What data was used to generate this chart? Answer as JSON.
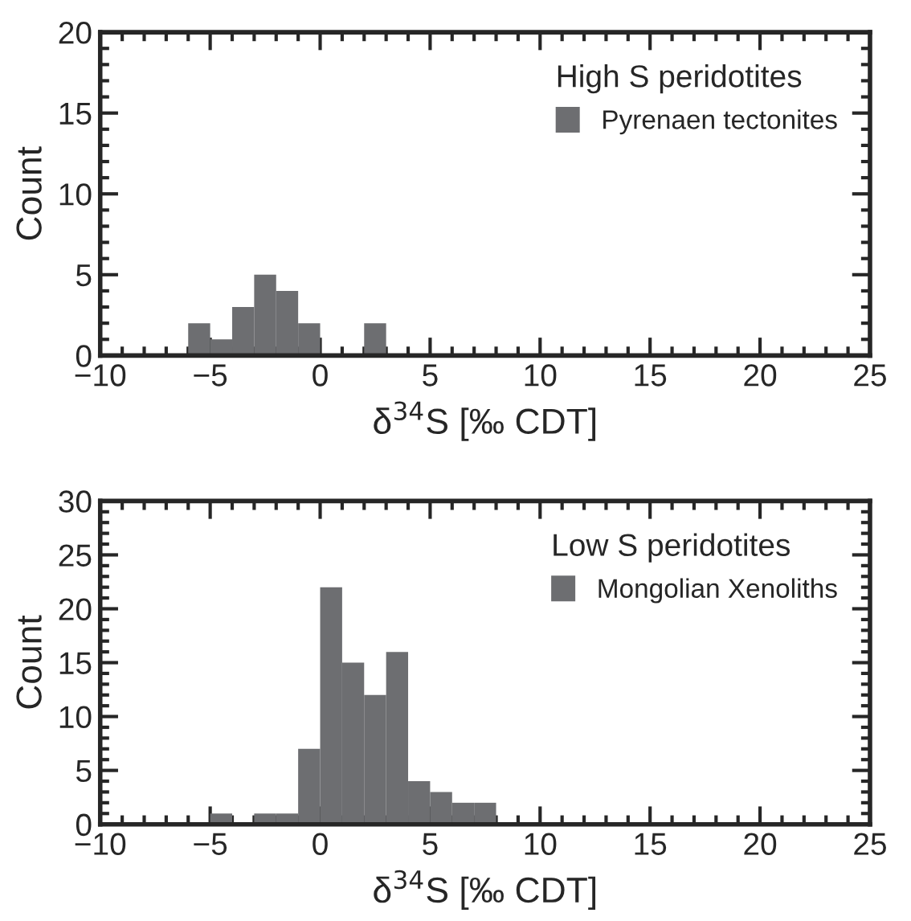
{
  "chart_data": [
    {
      "type": "histogram",
      "xlabel": "δ$^{34}$S [‰ CDT]",
      "ylabel": "Count",
      "legend_title": "High S peridotites",
      "legend": "top right",
      "bins": [
        -6,
        -5,
        -4,
        -3,
        -2,
        -1,
        0,
        1,
        2,
        3
      ],
      "series": [
        {
          "name": "Pyrenaen tectonites",
          "color": "#6d6e71",
          "values": [
            2,
            1,
            3,
            5,
            4,
            2,
            0,
            0,
            2
          ]
        }
      ],
      "xlim": [
        -10,
        25
      ],
      "ylim": [
        0,
        20
      ],
      "xticks": [
        -10,
        {
          "value": -9,
          "label": null
        },
        {
          "value": -8,
          "label": null
        },
        {
          "value": -7,
          "label": null
        },
        {
          "value": -6,
          "label": null
        },
        -5,
        {
          "value": -4,
          "label": null
        },
        {
          "value": -3,
          "label": null
        },
        {
          "value": -2,
          "label": null
        },
        {
          "value": -1,
          "label": null
        },
        0,
        {
          "value": 1,
          "label": null
        },
        {
          "value": 2,
          "label": null
        },
        {
          "value": 3,
          "label": null
        },
        {
          "value": 4,
          "label": null
        },
        5,
        {
          "value": 6,
          "label": null
        },
        {
          "value": 7,
          "label": null
        },
        {
          "value": 8,
          "label": null
        },
        {
          "value": 9,
          "label": null
        },
        10,
        {
          "value": 11,
          "label": null
        },
        {
          "value": 12,
          "label": null
        },
        {
          "value": 13,
          "label": null
        },
        {
          "value": 14,
          "label": null
        },
        15,
        {
          "value": 16,
          "label": null
        },
        {
          "value": 17,
          "label": null
        },
        {
          "value": 18,
          "label": null
        },
        {
          "value": 19,
          "label": null
        },
        20,
        {
          "value": 21,
          "label": null
        },
        {
          "value": 22,
          "label": null
        },
        {
          "value": 23,
          "label": null
        },
        {
          "value": 24,
          "label": null
        },
        25
      ],
      "yticks": [
        0,
        {
          "value": 1,
          "label": null
        },
        {
          "value": 2,
          "label": null
        },
        {
          "value": 3,
          "label": null
        },
        {
          "value": 4,
          "label": null
        },
        5,
        {
          "value": 6,
          "label": null
        },
        {
          "value": 7,
          "label": null
        },
        {
          "value": 8,
          "label": null
        },
        {
          "value": 9,
          "label": null
        },
        10,
        {
          "value": 11,
          "label": null
        },
        {
          "value": 12,
          "label": null
        },
        {
          "value": 13,
          "label": null
        },
        {
          "value": 14,
          "label": null
        },
        15,
        {
          "value": 16,
          "label": null
        },
        {
          "value": 17,
          "label": null
        },
        {
          "value": 18,
          "label": null
        },
        {
          "value": 19,
          "label": null
        },
        20
      ]
    },
    {
      "type": "histogram",
      "xlabel": "δ$^{34}$S [‰ CDT]",
      "ylabel": "Count",
      "legend_title": "Low S peridotites",
      "legend": "top right",
      "bins": [
        -5,
        -4,
        -3,
        -2,
        -1,
        0,
        1,
        2,
        3,
        4,
        5,
        6,
        7,
        8
      ],
      "series": [
        {
          "name": "Mongolian Xenoliths",
          "color": "#6d6e71",
          "values": [
            1,
            0,
            1,
            1,
            7,
            22,
            15,
            12,
            16,
            4,
            3,
            2,
            2
          ]
        }
      ],
      "xlim": [
        -10,
        25
      ],
      "ylim": [
        0,
        30
      ],
      "xticks": [
        -10,
        {
          "value": -9,
          "label": null
        },
        {
          "value": -8,
          "label": null
        },
        {
          "value": -7,
          "label": null
        },
        {
          "value": -6,
          "label": null
        },
        -5,
        {
          "value": -4,
          "label": null
        },
        {
          "value": -3,
          "label": null
        },
        {
          "value": -2,
          "label": null
        },
        {
          "value": -1,
          "label": null
        },
        0,
        {
          "value": 1,
          "label": null
        },
        {
          "value": 2,
          "label": null
        },
        {
          "value": 3,
          "label": null
        },
        {
          "value": 4,
          "label": null
        },
        5,
        {
          "value": 6,
          "label": null
        },
        {
          "value": 7,
          "label": null
        },
        {
          "value": 8,
          "label": null
        },
        {
          "value": 9,
          "label": null
        },
        10,
        {
          "value": 11,
          "label": null
        },
        {
          "value": 12,
          "label": null
        },
        {
          "value": 13,
          "label": null
        },
        {
          "value": 14,
          "label": null
        },
        15,
        {
          "value": 16,
          "label": null
        },
        {
          "value": 17,
          "label": null
        },
        {
          "value": 18,
          "label": null
        },
        {
          "value": 19,
          "label": null
        },
        20,
        {
          "value": 21,
          "label": null
        },
        {
          "value": 22,
          "label": null
        },
        {
          "value": 23,
          "label": null
        },
        {
          "value": 24,
          "label": null
        },
        25
      ],
      "yticks": [
        0,
        {
          "value": 1,
          "label": null
        },
        {
          "value": 2,
          "label": null
        },
        {
          "value": 3,
          "label": null
        },
        {
          "value": 4,
          "label": null
        },
        5,
        {
          "value": 6,
          "label": null
        },
        {
          "value": 7,
          "label": null
        },
        {
          "value": 8,
          "label": null
        },
        {
          "value": 9,
          "label": null
        },
        10,
        {
          "value": 11,
          "label": null
        },
        {
          "value": 12,
          "label": null
        },
        {
          "value": 13,
          "label": null
        },
        {
          "value": 14,
          "label": null
        },
        15,
        {
          "value": 16,
          "label": null
        },
        {
          "value": 17,
          "label": null
        },
        {
          "value": 18,
          "label": null
        },
        {
          "value": 19,
          "label": null
        },
        20,
        {
          "value": 21,
          "label": null
        },
        {
          "value": 22,
          "label": null
        },
        {
          "value": 23,
          "label": null
        },
        {
          "value": 24,
          "label": null
        },
        25,
        {
          "value": 26,
          "label": null
        },
        {
          "value": 27,
          "label": null
        },
        {
          "value": 28,
          "label": null
        },
        {
          "value": 29,
          "label": null
        },
        30
      ]
    }
  ]
}
